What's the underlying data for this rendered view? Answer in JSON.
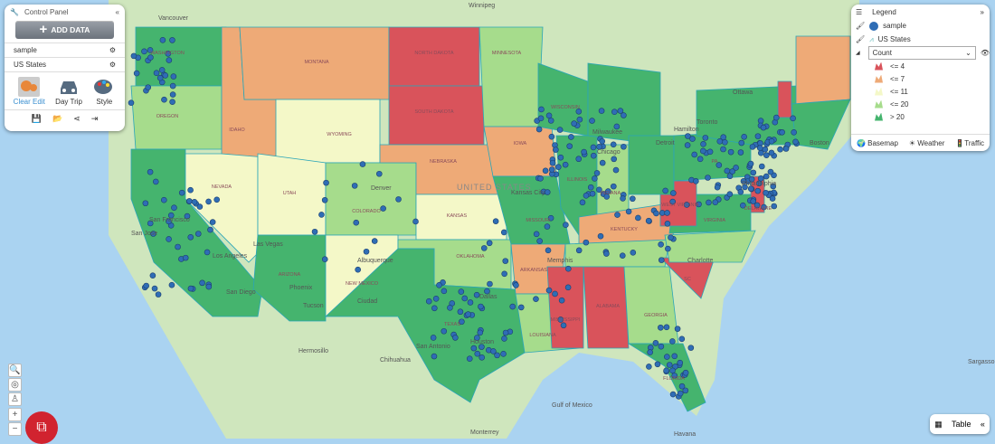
{
  "control_panel": {
    "title": "Control Panel",
    "add_data": "ADD DATA",
    "layers": [
      "sample",
      "US States"
    ],
    "tools": [
      {
        "label_a": "Clear",
        "label_b": "Edit"
      },
      {
        "label": "Day Trip"
      },
      {
        "label": "Style"
      }
    ]
  },
  "legend": {
    "title": "Legend",
    "layers": [
      "sample",
      "US States"
    ],
    "field": "Count",
    "classes": [
      {
        "label": "<= 4",
        "color": "#d9535b"
      },
      {
        "label": "<= 7",
        "color": "#eeaa77"
      },
      {
        "label": "<= 11",
        "color": "#f4f8c8"
      },
      {
        "label": "<= 20",
        "color": "#a6dc8c"
      },
      {
        "label": "> 20",
        "color": "#45b46e"
      }
    ],
    "footer": [
      "Basemap",
      "Weather",
      "Traffic"
    ],
    "point_color": "#2f6db5"
  },
  "table_button": "Table",
  "map": {
    "country_label": "UNITED STATES",
    "places": [
      "Vancouver",
      "Winnipeg",
      "Ottawa",
      "Toronto",
      "Hamilton",
      "Detroit",
      "Chicago",
      "Milwaukee",
      "Boston",
      "Philadelphia",
      "San Francisco",
      "San Jose",
      "Los Angeles",
      "San Diego",
      "Las Vegas",
      "Phoenix",
      "Tucson",
      "Albuquerque",
      "Ciudad",
      "Dallas",
      "Houston",
      "San Antonio",
      "Memphis",
      "Charlotte",
      "Denver",
      "Kansas City",
      "Hermosillo",
      "Chihuahua",
      "Monterrey",
      "Gulf of Mexico",
      "Havana",
      "Sargasso Sea"
    ],
    "states": [
      "WASHINGTON",
      "OREGON",
      "NEVADA",
      "IDAHO",
      "MONTANA",
      "WYOMING",
      "UTAH",
      "ARIZONA",
      "COLORADO",
      "NEW MEXICO",
      "NORTH DAKOTA",
      "SOUTH DAKOTA",
      "NEBRASKA",
      "KANSAS",
      "OKLAHOMA",
      "TEXAS",
      "MINNESOTA",
      "IOWA",
      "MISSOURI",
      "ARKANSAS",
      "LOUISIANA",
      "WISCONSIN",
      "ILLINOIS",
      "INDIANA",
      "KENTUCKY",
      "MISSISSIPPI",
      "ALABAMA",
      "GEORGIA",
      "FLORIDA",
      "WEST VIRGINIA",
      "VIRGINIA",
      "PA",
      "DELAWARE",
      "SC"
    ]
  }
}
